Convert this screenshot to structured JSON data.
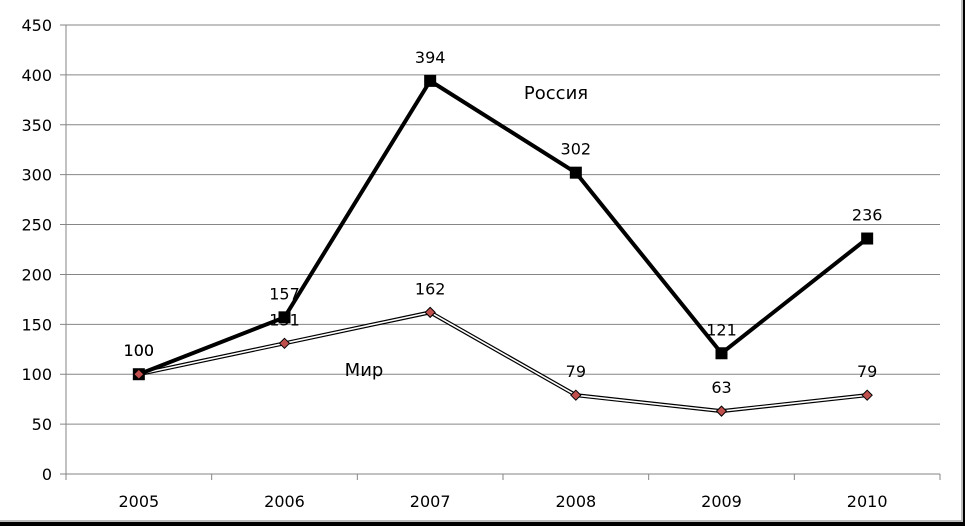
{
  "chart_data": {
    "type": "line",
    "categories": [
      "2005",
      "2006",
      "2007",
      "2008",
      "2009",
      "2010"
    ],
    "ylim": [
      0,
      450
    ],
    "y_ticks": [
      "0",
      "50",
      "100",
      "150",
      "200",
      "250",
      "300",
      "350",
      "400",
      "450"
    ],
    "grid": true,
    "series": [
      {
        "name": "Россия",
        "values": [
          100,
          157,
          394,
          302,
          121,
          236
        ],
        "color": "#000000",
        "marker": "square"
      },
      {
        "name": "Мир",
        "values": [
          100,
          131,
          162,
          79,
          63,
          79
        ],
        "color": "#000000",
        "marker": "diamond",
        "marker_color": "#c0504d"
      }
    ],
    "data_labels": [
      [
        "100",
        "157",
        "394",
        "302",
        "121",
        "236"
      ],
      [
        "100",
        "131",
        "162",
        "79",
        "63",
        "79"
      ]
    ]
  }
}
